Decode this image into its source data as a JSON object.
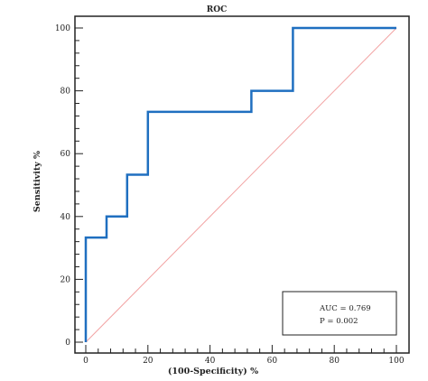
{
  "chart_data": {
    "type": "line",
    "title": "ROC",
    "xlabel": "(100-Specificity) %",
    "ylabel": "Sensitivity %",
    "xlim": [
      0,
      100
    ],
    "ylim": [
      0,
      100
    ],
    "xticks": [
      0,
      20,
      40,
      60,
      80,
      100
    ],
    "yticks": [
      0,
      20,
      40,
      60,
      80,
      100
    ],
    "grid": false,
    "series": [
      {
        "style": "step",
        "color": "#1f6fc0",
        "points": [
          [
            0,
            0
          ],
          [
            0,
            33.3
          ],
          [
            6.7,
            33.3
          ],
          [
            6.7,
            40
          ],
          [
            13.3,
            40
          ],
          [
            13.3,
            53.3
          ],
          [
            20,
            53.3
          ],
          [
            20,
            73.3
          ],
          [
            53.3,
            73.3
          ],
          [
            53.3,
            80
          ],
          [
            66.7,
            80
          ],
          [
            66.7,
            100
          ],
          [
            100,
            100
          ]
        ]
      },
      {
        "style": "reference",
        "color": "#f2a3a3",
        "points": [
          [
            0,
            0
          ],
          [
            100,
            100
          ]
        ]
      }
    ],
    "annotations": [
      "AUC = 0.769",
      "P = 0.002"
    ]
  }
}
